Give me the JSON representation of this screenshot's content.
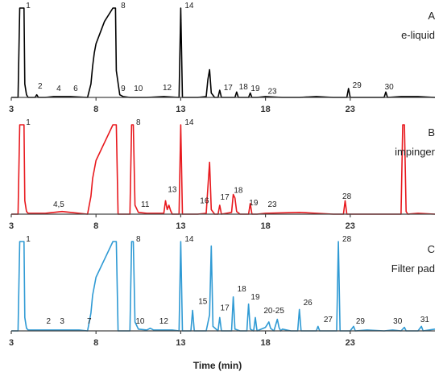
{
  "chart_data": {
    "type": "line",
    "xlabel": "Time (min)",
    "xlim": [
      3,
      28
    ],
    "x_ticks": [
      "3",
      "8",
      "13",
      "18",
      "23"
    ],
    "x_tick_values": [
      3,
      8,
      13,
      18,
      23
    ],
    "grid": false,
    "panels": [
      {
        "letter": "A",
        "title": "e-liquid",
        "color": "#000000",
        "series": [
          {
            "x": [
              3.0,
              3.4,
              3.5,
              3.6,
              3.7,
              3.75,
              3.8,
              3.9,
              4.0,
              4.4,
              4.5,
              4.6,
              5.0,
              5.5,
              6.5,
              7.5,
              7.7,
              7.8,
              7.9,
              8.0,
              8.5,
              9.0,
              9.1,
              9.15,
              9.2,
              9.4,
              9.6,
              10.0,
              11.0,
              12.0,
              12.9,
              13.0,
              13.1,
              14.0,
              14.5,
              14.6,
              14.7,
              14.8,
              15.0,
              15.2,
              15.3,
              15.4,
              16.0,
              16.2,
              16.3,
              16.4,
              17.0,
              17.1,
              17.2,
              17.5,
              18.0,
              19.0,
              20.0,
              21.0,
              22.0,
              22.8,
              22.9,
              23.0,
              23.5,
              24.5,
              25.0,
              25.1,
              25.2,
              26.0,
              27.0,
              28.0
            ],
            "y": [
              0.0,
              0.0,
              1.2,
              1.2,
              1.2,
              1.2,
              0.15,
              0.03,
              0.0,
              0.0,
              0.03,
              0.0,
              0.0,
              0.01,
              0.01,
              0.0,
              0.15,
              0.35,
              0.5,
              0.6,
              0.85,
              1.05,
              1.2,
              1.2,
              0.3,
              0.03,
              0.01,
              0.0,
              0.0,
              0.01,
              0.0,
              1.2,
              0.0,
              0.0,
              0.01,
              0.2,
              0.31,
              0.05,
              0.0,
              0.0,
              0.08,
              0.0,
              0.0,
              0.0,
              0.06,
              0.0,
              0.0,
              0.05,
              0.0,
              0.0,
              0.01,
              0.0,
              0.0,
              0.01,
              0.0,
              0.0,
              0.1,
              0.0,
              0.0,
              0.0,
              0.0,
              0.06,
              0.0,
              0.01,
              0.01,
              0.0
            ]
          }
        ],
        "peak_labels": [
          {
            "text": "1",
            "x": 4.0,
            "y": 1.12
          },
          {
            "text": "2",
            "x": 4.7,
            "y": 0.1
          },
          {
            "text": "4",
            "x": 5.8,
            "y": 0.07
          },
          {
            "text": "6",
            "x": 6.8,
            "y": 0.07
          },
          {
            "text": "8",
            "x": 9.6,
            "y": 1.12
          },
          {
            "text": "9",
            "x": 9.6,
            "y": 0.07
          },
          {
            "text": "10",
            "x": 10.5,
            "y": 0.07
          },
          {
            "text": "12",
            "x": 12.2,
            "y": 0.08
          },
          {
            "text": "14",
            "x": 13.5,
            "y": 1.1
          },
          {
            "text": "17",
            "x": 15.8,
            "y": 0.08
          },
          {
            "text": "18",
            "x": 16.7,
            "y": 0.09
          },
          {
            "text": "19",
            "x": 17.4,
            "y": 0.07
          },
          {
            "text": "23",
            "x": 18.4,
            "y": 0.04
          },
          {
            "text": "29",
            "x": 23.4,
            "y": 0.11
          },
          {
            "text": "30",
            "x": 25.3,
            "y": 0.09
          }
        ]
      },
      {
        "letter": "B",
        "title": "impinger",
        "color": "#e8191e",
        "series": [
          {
            "x": [
              3.0,
              3.4,
              3.5,
              3.6,
              3.7,
              3.75,
              3.8,
              3.9,
              4.0,
              5.0,
              6.0,
              7.0,
              7.5,
              7.7,
              7.8,
              7.9,
              8.0,
              8.5,
              9.0,
              9.2,
              9.3,
              9.4,
              10.0,
              10.1,
              10.2,
              10.3,
              10.5,
              11.0,
              12.0,
              12.1,
              12.2,
              12.3,
              12.4,
              12.5,
              12.9,
              13.0,
              13.1,
              14.0,
              14.5,
              14.6,
              14.7,
              14.8,
              15.0,
              15.2,
              15.3,
              15.4,
              16.0,
              16.1,
              16.2,
              16.3,
              16.5,
              17.0,
              17.1,
              17.2,
              17.5,
              18.0,
              20.0,
              22.0,
              22.6,
              22.7,
              22.8,
              23.0,
              25.0,
              25.5,
              26.0,
              26.1,
              26.2,
              26.3,
              26.4,
              27.0,
              28.0
            ],
            "y": [
              0.0,
              0.0,
              1.2,
              1.2,
              1.2,
              1.2,
              0.15,
              0.03,
              0.01,
              0.01,
              0.03,
              0.01,
              0.0,
              0.2,
              0.4,
              0.5,
              0.6,
              0.8,
              1.0,
              1.2,
              0.0,
              0.0,
              0.0,
              1.2,
              1.2,
              0.1,
              0.02,
              0.01,
              0.01,
              0.15,
              0.05,
              0.1,
              0.04,
              0.0,
              0.0,
              1.2,
              0.0,
              0.0,
              0.01,
              0.3,
              0.58,
              0.05,
              0.0,
              0.0,
              0.1,
              0.0,
              0.02,
              0.22,
              0.18,
              0.03,
              0.0,
              0.0,
              0.12,
              0.0,
              0.0,
              0.01,
              0.02,
              0.0,
              0.0,
              0.15,
              0.0,
              0.0,
              0.0,
              0.0,
              0.0,
              1.2,
              1.2,
              0.03,
              0.0,
              0.01,
              0.0
            ]
          }
        ],
        "peak_labels": [
          {
            "text": "1",
            "x": 4.0,
            "y": 1.12
          },
          {
            "text": "4,5",
            "x": 5.8,
            "y": 0.08
          },
          {
            "text": "8",
            "x": 10.5,
            "y": 1.12
          },
          {
            "text": "11",
            "x": 10.9,
            "y": 0.08
          },
          {
            "text": "13",
            "x": 12.5,
            "y": 0.25
          },
          {
            "text": "14",
            "x": 13.5,
            "y": 1.1
          },
          {
            "text": "16",
            "x": 14.4,
            "y": 0.12
          },
          {
            "text": "17",
            "x": 15.6,
            "y": 0.16
          },
          {
            "text": "18",
            "x": 16.4,
            "y": 0.24
          },
          {
            "text": "19",
            "x": 17.3,
            "y": 0.1
          },
          {
            "text": "23",
            "x": 18.4,
            "y": 0.08
          },
          {
            "text": "28",
            "x": 22.8,
            "y": 0.17
          }
        ]
      },
      {
        "letter": "C",
        "title": "Filter pad",
        "color": "#2f9ad4",
        "series": [
          {
            "x": [
              3.0,
              3.4,
              3.5,
              3.6,
              3.7,
              3.75,
              3.8,
              3.9,
              4.0,
              5.0,
              6.0,
              7.0,
              7.5,
              7.7,
              7.8,
              7.9,
              8.0,
              8.5,
              9.0,
              9.2,
              9.3,
              9.4,
              10.0,
              10.1,
              10.2,
              10.3,
              10.5,
              11.0,
              11.2,
              11.4,
              12.0,
              12.5,
              12.9,
              13.0,
              13.1,
              13.6,
              13.7,
              13.8,
              14.5,
              14.7,
              14.8,
              14.9,
              15.2,
              15.3,
              15.4,
              16.0,
              16.1,
              16.2,
              16.5,
              16.9,
              17.0,
              17.1,
              17.3,
              17.4,
              17.5,
              18.0,
              18.2,
              18.3,
              18.5,
              18.7,
              18.8,
              18.9,
              19.0,
              19.5,
              19.9,
              20.0,
              20.1,
              21.0,
              21.1,
              21.2,
              22.0,
              22.2,
              22.3,
              22.4,
              23.0,
              23.2,
              23.3,
              24.0,
              25.0,
              25.5,
              26.0,
              26.2,
              26.3,
              26.5,
              27.0,
              27.2,
              27.3,
              28.0
            ],
            "y": [
              0.0,
              0.0,
              1.2,
              1.2,
              1.2,
              1.2,
              0.15,
              0.03,
              0.01,
              0.01,
              0.01,
              0.01,
              0.0,
              0.2,
              0.4,
              0.5,
              0.6,
              0.8,
              1.0,
              1.2,
              0.0,
              0.0,
              0.0,
              1.2,
              1.2,
              0.1,
              0.02,
              0.01,
              0.03,
              0.01,
              0.01,
              0.01,
              0.0,
              1.2,
              0.0,
              0.0,
              0.23,
              0.0,
              0.0,
              0.18,
              0.95,
              0.05,
              0.0,
              0.15,
              0.0,
              0.0,
              0.38,
              0.02,
              0.0,
              0.0,
              0.3,
              0.02,
              0.0,
              0.15,
              0.0,
              0.04,
              0.1,
              0.03,
              0.0,
              0.13,
              0.04,
              0.0,
              0.02,
              0.0,
              0.0,
              0.24,
              0.0,
              0.0,
              0.05,
              0.0,
              0.0,
              0.0,
              1.2,
              0.0,
              0.0,
              0.05,
              0.0,
              0.01,
              0.0,
              0.01,
              0.0,
              0.04,
              0.0,
              0.0,
              0.0,
              0.05,
              0.0,
              0.02
            ]
          }
        ],
        "peak_labels": [
          {
            "text": "1",
            "x": 4.0,
            "y": 1.12
          },
          {
            "text": "2",
            "x": 5.2,
            "y": 0.08
          },
          {
            "text": "3",
            "x": 6.0,
            "y": 0.08
          },
          {
            "text": "7",
            "x": 7.6,
            "y": 0.08
          },
          {
            "text": "8",
            "x": 10.5,
            "y": 1.12
          },
          {
            "text": "10",
            "x": 10.6,
            "y": 0.08
          },
          {
            "text": "12",
            "x": 12.0,
            "y": 0.08
          },
          {
            "text": "14",
            "x": 13.5,
            "y": 1.1
          },
          {
            "text": "15",
            "x": 14.3,
            "y": 0.3
          },
          {
            "text": "17",
            "x": 15.6,
            "y": 0.23
          },
          {
            "text": "18",
            "x": 16.6,
            "y": 0.44
          },
          {
            "text": "19",
            "x": 17.4,
            "y": 0.35
          },
          {
            "text": "20-25",
            "x": 18.5,
            "y": 0.2
          },
          {
            "text": "26",
            "x": 20.5,
            "y": 0.29
          },
          {
            "text": "27",
            "x": 21.7,
            "y": 0.1
          },
          {
            "text": "28",
            "x": 22.8,
            "y": 1.12
          },
          {
            "text": "29",
            "x": 23.6,
            "y": 0.08
          },
          {
            "text": "30",
            "x": 25.8,
            "y": 0.08
          },
          {
            "text": "31",
            "x": 27.4,
            "y": 0.1
          }
        ]
      }
    ]
  }
}
